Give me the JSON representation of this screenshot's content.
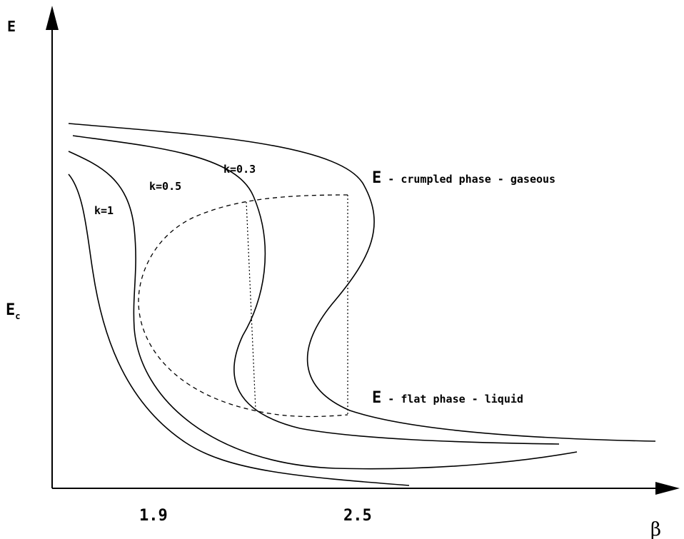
{
  "axes": {
    "y_label": "E",
    "y_mark_main": "E",
    "y_mark_sub": "c",
    "x_label": "β",
    "x_ticks": [
      "1.9",
      "2.5"
    ]
  },
  "curves": [
    {
      "label": "k=1"
    },
    {
      "label": "k=0.5"
    },
    {
      "label": "k=0.3"
    }
  ],
  "annotations": {
    "upper_symbol": "E",
    "upper_text": " - crumpled phase - gaseous",
    "lower_symbol": "E",
    "lower_text": " - flat phase - liquid"
  }
}
